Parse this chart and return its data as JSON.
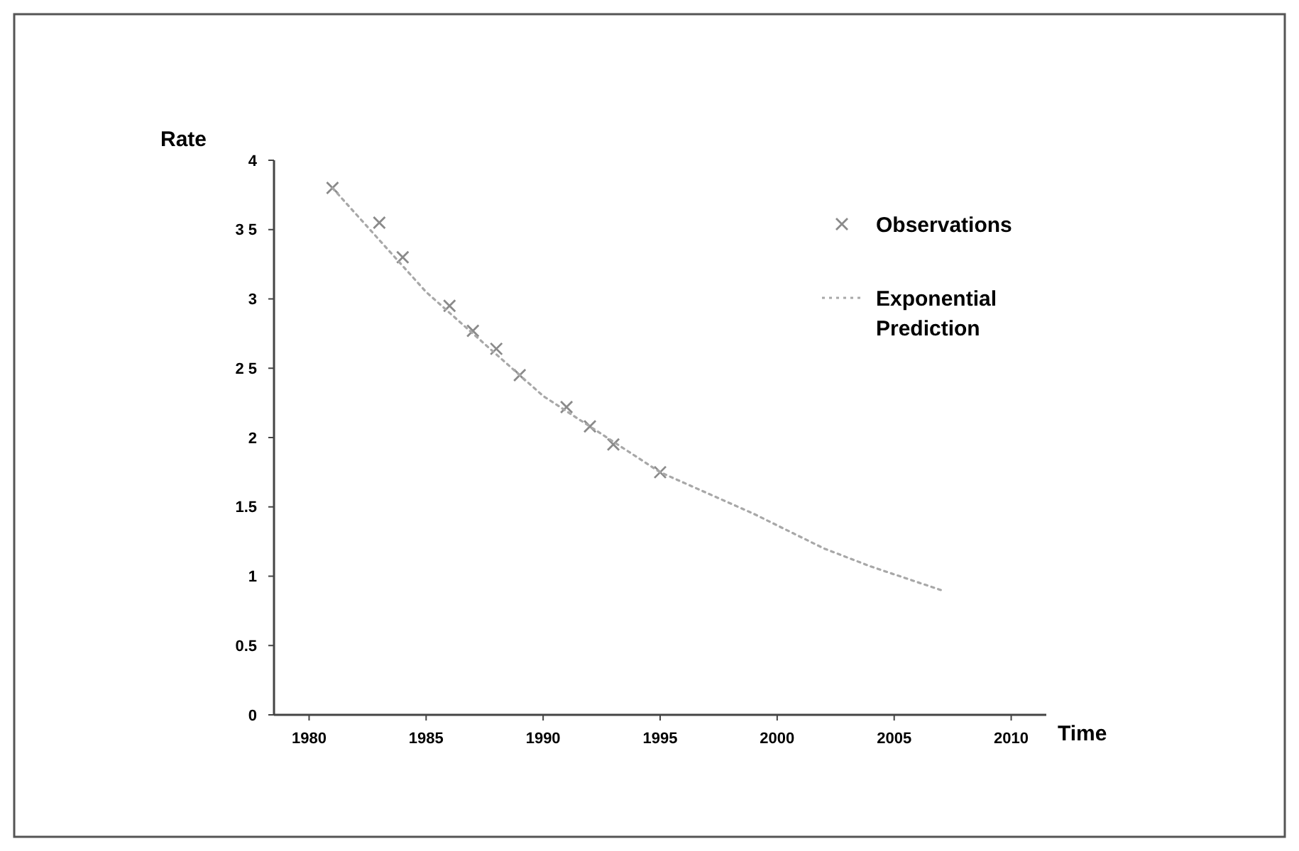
{
  "chart_data": {
    "type": "scatter",
    "xlabel": "Time",
    "ylabel": "Rate",
    "xlim": [
      1978.5,
      2011.5
    ],
    "ylim": [
      0,
      4
    ],
    "xticks": [
      1980,
      1985,
      1990,
      1995,
      2000,
      2005,
      2010
    ],
    "yticks": [
      0,
      {
        "value": 0.5,
        "label": "0.5"
      },
      1,
      {
        "value": 1.5,
        "label": "1.5"
      },
      2,
      {
        "value": 2.5,
        "label": "2 5"
      },
      3,
      {
        "value": 3.5,
        "label": "3 5"
      },
      4
    ],
    "grid": false,
    "legend": "top right",
    "series": [
      {
        "name": "Observations",
        "marker": "cross",
        "color": "#8a8a8a",
        "x": [
          1981,
          1983,
          1984,
          1986,
          1987,
          1988,
          1989,
          1991,
          1992,
          1993,
          1995
        ],
        "values": [
          3.8,
          3.55,
          3.3,
          2.95,
          2.77,
          2.64,
          2.45,
          2.22,
          2.08,
          1.95,
          1.75
        ]
      },
      {
        "name": "Exponential Prediction",
        "type": "line",
        "marker": "none",
        "line_style": "dotted",
        "color": "#a8a8a8",
        "x": [
          1981,
          1985,
          1990,
          1995,
          1999,
          2002,
          2004,
          2007
        ],
        "values": [
          3.8,
          3.05,
          2.3,
          1.75,
          1.45,
          1.2,
          1.07,
          0.9
        ]
      }
    ]
  }
}
